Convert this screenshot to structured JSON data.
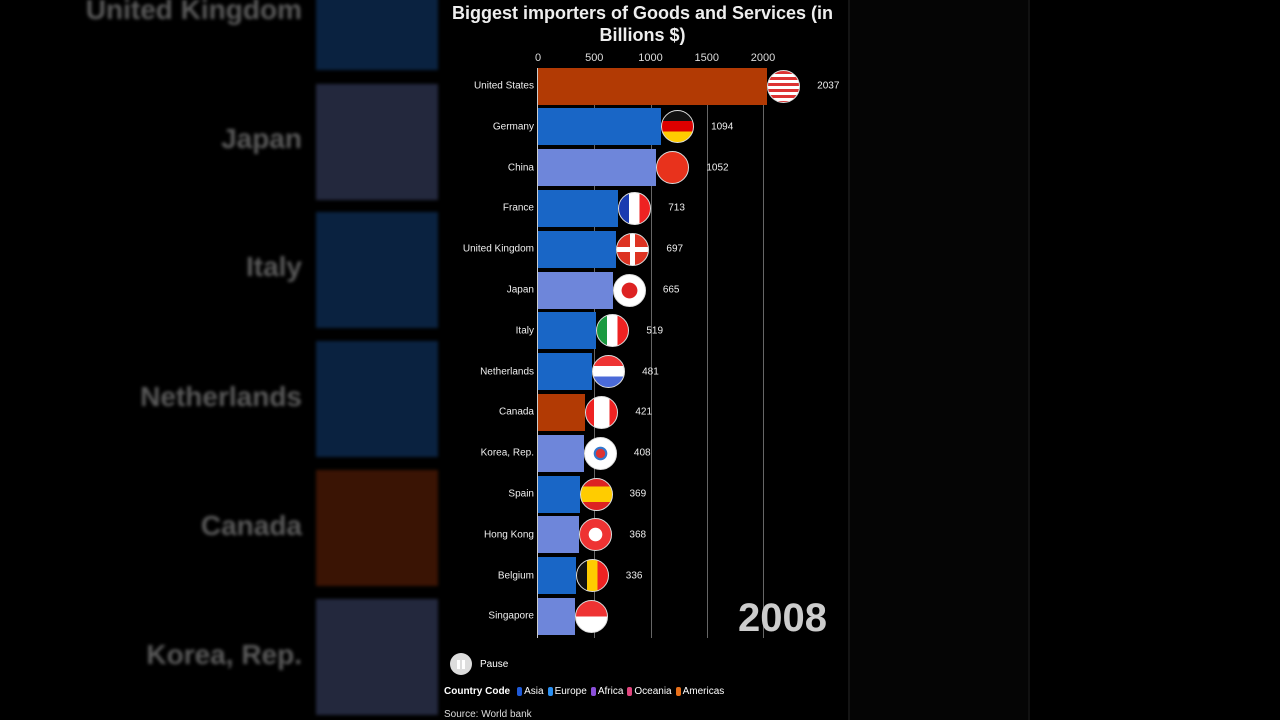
{
  "background_labels": [
    "United Kingdom",
    "Japan",
    "Italy",
    "Netherlands",
    "Canada",
    "Korea, Rep."
  ],
  "chart_data": {
    "type": "bar",
    "title": "Biggest importers of Goods and Services (in Billions $)",
    "xlim": [
      0,
      2100
    ],
    "ticks": [
      "0",
      "500",
      "1000",
      "1500",
      "2000"
    ],
    "grid": true,
    "categories": [
      "United States",
      "Germany",
      "China",
      "France",
      "United Kingdom",
      "Japan",
      "Italy",
      "Netherlands",
      "Canada",
      "Korea, Rep.",
      "Spain",
      "Hong Kong",
      "Belgium",
      "Singapore"
    ],
    "values": [
      2037,
      1094,
      1052,
      713,
      697,
      665,
      519,
      481,
      421,
      408,
      369,
      368,
      336,
      null
    ],
    "regions": [
      "Americas",
      "Europe",
      "Asia",
      "Europe",
      "Europe",
      "Asia",
      "Europe",
      "Europe",
      "Americas",
      "Asia",
      "Europe",
      "Asia",
      "Europe",
      "Asia"
    ],
    "region_colors": {
      "Asia": "#6e86da",
      "Europe": "#1966c6",
      "Americas": "#b23a04"
    },
    "flags": [
      "us",
      "de",
      "cn",
      "fr",
      "gb",
      "jp",
      "it",
      "nl",
      "ca",
      "kr",
      "es",
      "hk",
      "be",
      "sg"
    ]
  },
  "year": "2008",
  "pause_label": "Pause",
  "legend": {
    "title": "Country Code",
    "items": [
      {
        "label": "Asia",
        "color": "#1f5ad8"
      },
      {
        "label": "Europe",
        "color": "#2b8ff0"
      },
      {
        "label": "Africa",
        "color": "#8a4fd8"
      },
      {
        "label": "Oceania",
        "color": "#e0457e"
      },
      {
        "label": "Americas",
        "color": "#e8701a"
      }
    ]
  },
  "source": "Source: World bank"
}
